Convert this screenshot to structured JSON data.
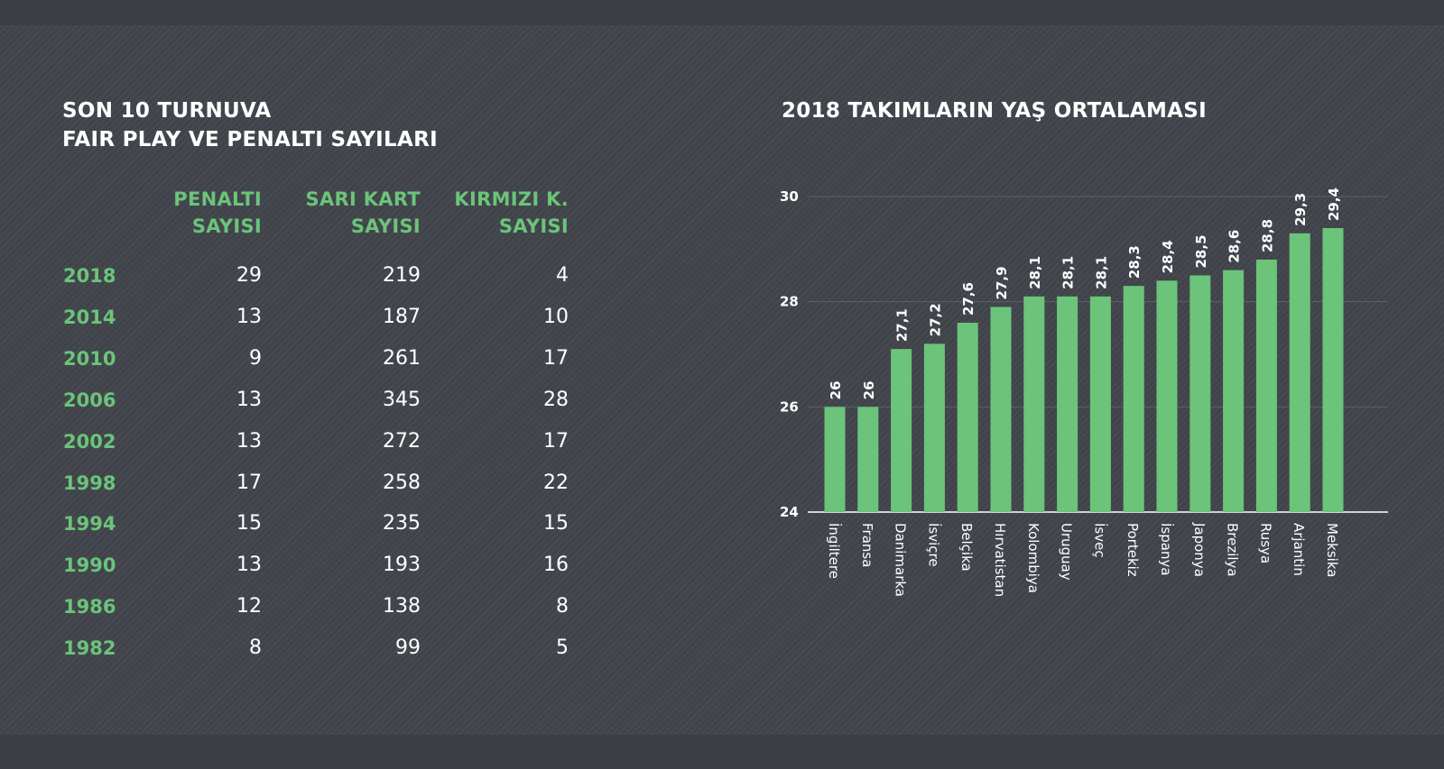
{
  "left": {
    "title_line1": "SON 10 TURNUVA",
    "title_line2": "FAIR PLAY VE PENALTI SAYILARI",
    "columns": [
      {
        "line1": "PENALTI",
        "line2": "SAYISI"
      },
      {
        "line1": "SARI KART",
        "line2": "SAYISI"
      },
      {
        "line1": "KIRMIZI K.",
        "line2": "SAYISI"
      }
    ],
    "rows": [
      {
        "year": "2018",
        "penalti": "29",
        "sari": "219",
        "kirmizi": "4"
      },
      {
        "year": "2014",
        "penalti": "13",
        "sari": "187",
        "kirmizi": "10"
      },
      {
        "year": "2010",
        "penalti": "9",
        "sari": "261",
        "kirmizi": "17"
      },
      {
        "year": "2006",
        "penalti": "13",
        "sari": "345",
        "kirmizi": "28"
      },
      {
        "year": "2002",
        "penalti": "13",
        "sari": "272",
        "kirmizi": "17"
      },
      {
        "year": "1998",
        "penalti": "17",
        "sari": "258",
        "kirmizi": "22"
      },
      {
        "year": "1994",
        "penalti": "15",
        "sari": "235",
        "kirmizi": "15"
      },
      {
        "year": "1990",
        "penalti": "13",
        "sari": "193",
        "kirmizi": "16"
      },
      {
        "year": "1986",
        "penalti": "12",
        "sari": "138",
        "kirmizi": "8"
      },
      {
        "year": "1982",
        "penalti": "8",
        "sari": "99",
        "kirmizi": "5"
      }
    ]
  },
  "chart_data": {
    "type": "bar",
    "title": "2018 TAKIMLARIN YAŞ ORTALAMASI",
    "categories": [
      "İngiltere",
      "Fransa",
      "Danimarka",
      "İsviçre",
      "Belçika",
      "Hırvatistan",
      "Kolombiya",
      "Uruguay",
      "İsveç",
      "Portekiz",
      "İspanya",
      "Japonya",
      "Brezilya",
      "Rusya",
      "Arjantin",
      "Meksika"
    ],
    "values": [
      26,
      26,
      27.1,
      27.2,
      27.6,
      27.9,
      28.1,
      28.1,
      28.1,
      28.3,
      28.4,
      28.5,
      28.6,
      28.8,
      29.3,
      29.4
    ],
    "value_labels": [
      "26",
      "26",
      "27,1",
      "27,2",
      "27,6",
      "27,9",
      "28,1",
      "28,1",
      "28,1",
      "28,3",
      "28,4",
      "28,5",
      "28,6",
      "28,8",
      "29,3",
      "29,4"
    ],
    "ylim": [
      24,
      30
    ],
    "yticks": [
      24,
      26,
      28,
      30
    ],
    "grid": true,
    "xlabel": "",
    "ylabel": "",
    "colors": {
      "bar": "#6bc47a",
      "text": "#ffffff",
      "grid": "#5c6167",
      "background": "#40444a",
      "accent": "#6bc47a"
    }
  }
}
